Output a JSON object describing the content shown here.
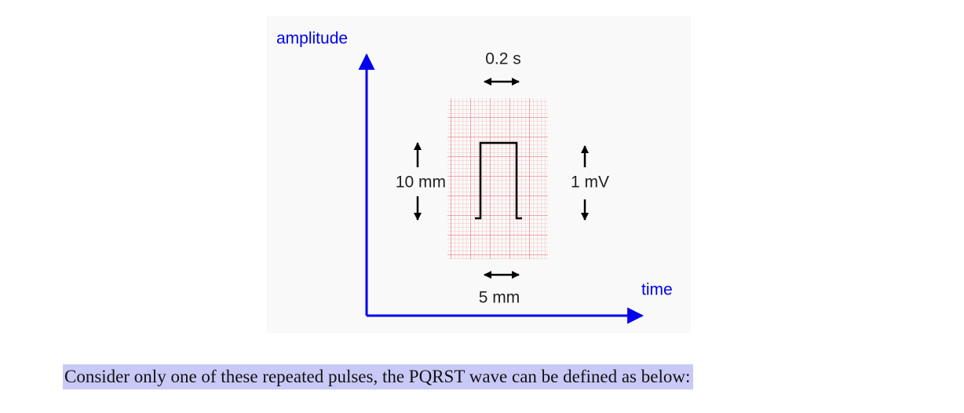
{
  "diagram": {
    "y_axis_label": "amplitude",
    "x_axis_label": "time",
    "time_label": "0.2 s",
    "width_label": "5 mm",
    "height_label": "10 mm",
    "voltage_label": "1 mV"
  },
  "paragraph": "Consider only one of these repeated pulses, the PQRST wave can be defined as below:"
}
